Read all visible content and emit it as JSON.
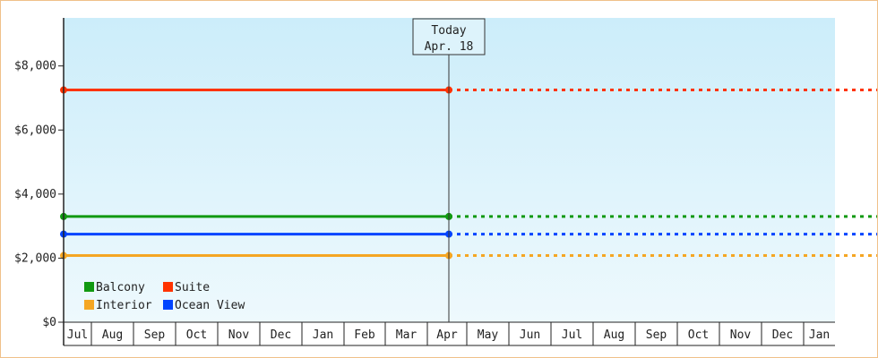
{
  "chart_data": {
    "type": "line",
    "y_ticks": [
      "$0",
      "$2,000",
      "$4,000",
      "$6,000",
      "$8,000"
    ],
    "y_tick_values": [
      0,
      2000,
      4000,
      6000,
      8000
    ],
    "ylim": [
      0,
      9500
    ],
    "months": [
      "Jul",
      "Aug",
      "Sep",
      "Oct",
      "Nov",
      "Dec",
      "Jan",
      "Feb",
      "Mar",
      "Apr",
      "May",
      "Jun",
      "Jul",
      "Aug",
      "Sep",
      "Oct",
      "Nov",
      "Dec",
      "Jan"
    ],
    "today": {
      "label": "Today",
      "date": "Apr. 18"
    },
    "grid": false,
    "legend_position": "bottom-left",
    "series": [
      {
        "name": "Balcony",
        "color": "#119911",
        "start_value": 3300,
        "today_value": 3300
      },
      {
        "name": "Suite",
        "color": "#ff3300",
        "start_value": 7250,
        "today_value": 7250
      },
      {
        "name": "Interior",
        "color": "#f5a623",
        "start_value": 2080,
        "today_value": 2080
      },
      {
        "name": "Ocean View",
        "color": "#0044ff",
        "start_value": 2750,
        "today_value": 2750
      }
    ],
    "legend_order": [
      "Balcony",
      "Suite",
      "Interior",
      "Ocean View"
    ],
    "colors": {
      "plot_top": "#ccedfa",
      "plot_bottom": "#eef9fd",
      "frame_border": "#f0c08a",
      "axis": "#222222"
    }
  }
}
